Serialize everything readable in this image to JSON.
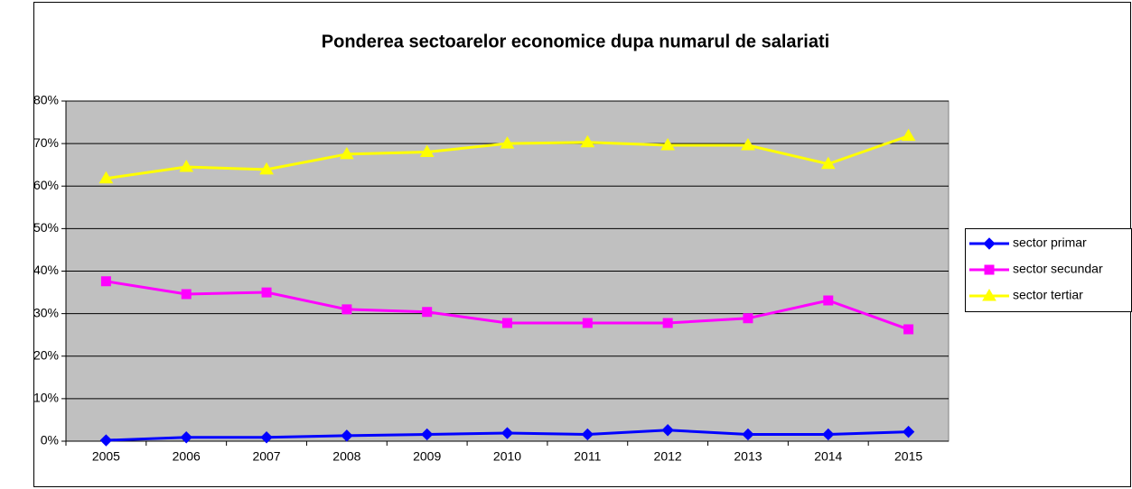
{
  "chart_data": {
    "type": "line",
    "title": "Ponderea sectoarelor economice dupa numarul de salariati",
    "categories": [
      "2005",
      "2006",
      "2007",
      "2008",
      "2009",
      "2010",
      "2011",
      "2012",
      "2013",
      "2014",
      "2015"
    ],
    "series": [
      {
        "name": "sector primar",
        "color": "#0000ff",
        "marker": "diamond",
        "values": [
          0.2,
          0.9,
          0.9,
          1.3,
          1.6,
          1.9,
          1.6,
          2.6,
          1.6,
          1.6,
          2.2
        ]
      },
      {
        "name": "sector secundar",
        "color": "#ff00ff",
        "marker": "square",
        "values": [
          37.6,
          34.6,
          35,
          31,
          30.4,
          27.8,
          27.8,
          27.8,
          28.9,
          33.1,
          26.3
        ]
      },
      {
        "name": "sector tertiar",
        "color": "#ffff00",
        "marker": "triangle",
        "values": [
          61.8,
          64.5,
          63.9,
          67.5,
          68,
          70,
          70.3,
          69.6,
          69.6,
          65.2,
          71.8
        ]
      }
    ],
    "ylim": [
      0,
      80
    ],
    "yticks": [
      {
        "value": 0,
        "label": "0%"
      },
      {
        "value": 10,
        "label": "10%"
      },
      {
        "value": 20,
        "label": "20%"
      },
      {
        "value": 30,
        "label": "30%"
      },
      {
        "value": 40,
        "label": "40%"
      },
      {
        "value": 50,
        "label": "50%"
      },
      {
        "value": 60,
        "label": "60%"
      },
      {
        "value": 70,
        "label": "70%"
      },
      {
        "value": 80,
        "label": "80%"
      }
    ],
    "grid": true,
    "legend": "right"
  }
}
